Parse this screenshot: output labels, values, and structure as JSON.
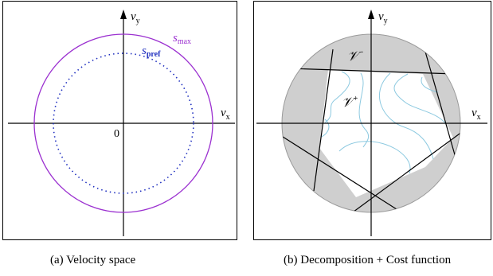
{
  "figure": {
    "panel_a": {
      "caption": "(a)  Velocity space",
      "axis_x_label": "v",
      "axis_x_sub": "x",
      "axis_y_label": "v",
      "axis_y_sub": "y",
      "origin_label": "0",
      "outer_circle_label": "s",
      "outer_circle_sub": "max",
      "inner_circle_label": "s",
      "inner_circle_sub": "pref",
      "outer_color": "#9b30d0",
      "inner_color": "#1f2fbf"
    },
    "panel_b": {
      "caption": "(b)  Decomposition + Cost function",
      "axis_x_label": "v",
      "axis_x_sub": "x",
      "axis_y_label": "v",
      "axis_y_sub": "y",
      "region_minus_label": "𝒱",
      "region_minus_sup": "−",
      "region_plus_label": "𝒱",
      "region_plus_sup": "+",
      "shade_color": "#cfcfcf",
      "contour_color": "#8cc9e0"
    }
  }
}
